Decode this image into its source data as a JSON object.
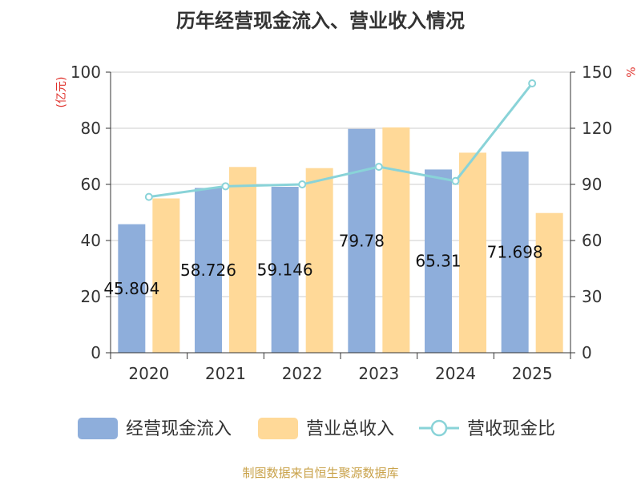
{
  "chart_data": {
    "type": "bar",
    "title": "历年经营现金流入、营业收入情况",
    "categories": [
      "2020",
      "2021",
      "2022",
      "2023",
      "2024",
      "2025"
    ],
    "left_axis": {
      "unit": "(亿元)",
      "min": 0,
      "max": 100,
      "ticks": [
        0,
        20,
        40,
        60,
        80,
        100
      ]
    },
    "right_axis": {
      "unit": "%",
      "min": 0,
      "max": 150,
      "ticks": [
        0,
        30,
        60,
        90,
        120,
        150
      ]
    },
    "series": [
      {
        "name": "经营现金流入",
        "type": "bar",
        "axis": "left",
        "color": "#8eaedb",
        "values": [
          45.804,
          58.726,
          59.146,
          79.78,
          65.31,
          71.698
        ],
        "labels": [
          "45.804",
          "58.726",
          "59.146",
          "79.78",
          "65.31",
          "71.698"
        ]
      },
      {
        "name": "营业总收入",
        "type": "bar",
        "axis": "left",
        "color": "#ffd998",
        "values": [
          55.0,
          66.2,
          65.8,
          80.3,
          71.3,
          49.8
        ]
      },
      {
        "name": "营收现金比",
        "type": "line",
        "axis": "right",
        "color": "#89d3d8",
        "values": [
          83.3,
          89.0,
          90.0,
          99.4,
          91.8,
          144.0
        ]
      }
    ],
    "grid": true,
    "legend": "bottom",
    "source": "制图数据来自恒生聚源数据库"
  }
}
